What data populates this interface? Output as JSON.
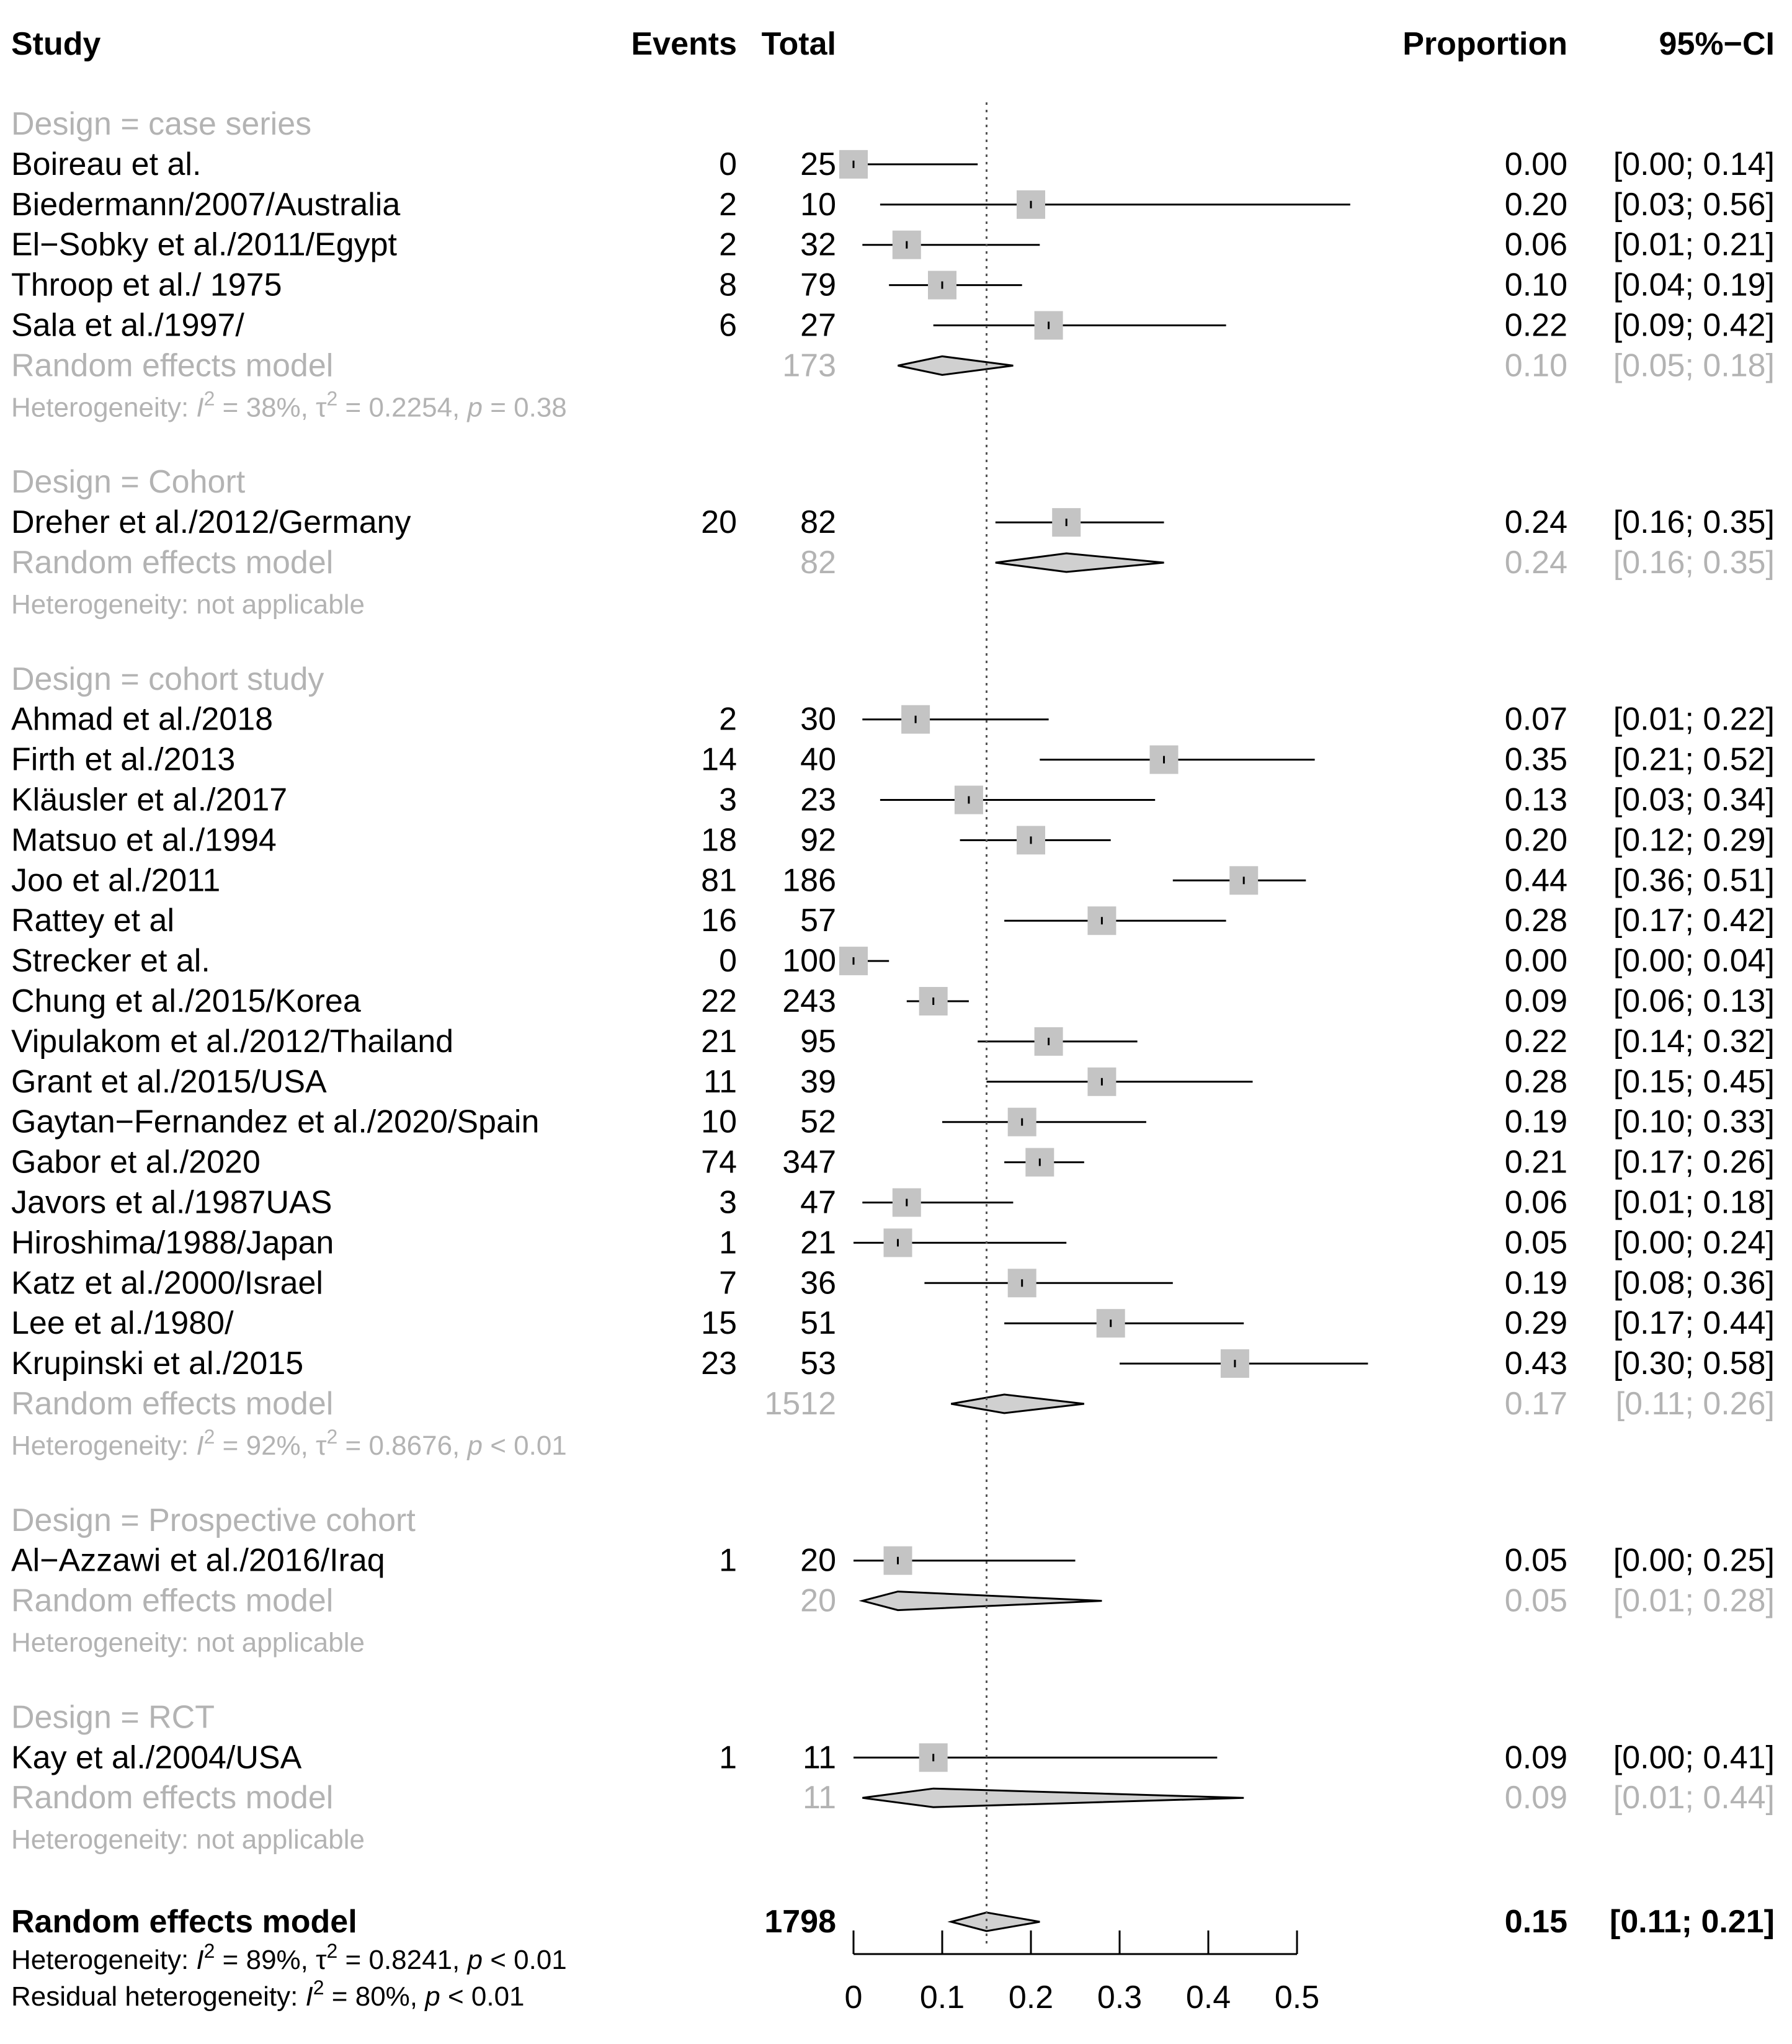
{
  "chart_data": {
    "type": "forest",
    "headers": {
      "study": "Study",
      "events": "Events",
      "total": "Total",
      "proportion": "Proportion",
      "ci": "95%−CI"
    },
    "x_axis": {
      "min": 0,
      "max": 0.5,
      "ticks": [
        "0",
        "0.1",
        "0.2",
        "0.3",
        "0.4",
        "0.5"
      ]
    },
    "reference_line": 0.15,
    "groups": [
      {
        "label": "Design = case series",
        "studies": [
          {
            "name": "Boireau et al.",
            "events": "0",
            "total": "25",
            "prop": 0.0,
            "lo": 0.0,
            "hi": 0.14,
            "prop_text": "0.00",
            "ci_text": "[0.00; 0.14]"
          },
          {
            "name": "Biedermann/2007/Australia",
            "events": "2",
            "total": "10",
            "prop": 0.2,
            "lo": 0.03,
            "hi": 0.56,
            "prop_text": "0.20",
            "ci_text": "[0.03; 0.56]"
          },
          {
            "name": "El−Sobky et al./2011/Egypt",
            "events": "2",
            "total": "32",
            "prop": 0.06,
            "lo": 0.01,
            "hi": 0.21,
            "prop_text": "0.06",
            "ci_text": "[0.01; 0.21]"
          },
          {
            "name": "Throop et al./ 1975",
            "events": "8",
            "total": "79",
            "prop": 0.1,
            "lo": 0.04,
            "hi": 0.19,
            "prop_text": "0.10",
            "ci_text": "[0.04; 0.19]"
          },
          {
            "name": "Sala et al./1997/",
            "events": "6",
            "total": "27",
            "prop": 0.22,
            "lo": 0.09,
            "hi": 0.42,
            "prop_text": "0.22",
            "ci_text": "[0.09; 0.42]"
          }
        ],
        "summary": {
          "label": "Random effects model",
          "total": "173",
          "prop": 0.1,
          "lo": 0.05,
          "hi": 0.18,
          "prop_text": "0.10",
          "ci_text": "[0.05; 0.18]"
        },
        "heterogeneity": {
          "prefix": "Heterogeneity: ",
          "i2": "38%",
          "tau2": "0.2254",
          "p": "= 0.38",
          "text": ""
        }
      },
      {
        "label": "Design = Cohort",
        "studies": [
          {
            "name": "Dreher et al./2012/Germany",
            "events": "20",
            "total": "82",
            "prop": 0.24,
            "lo": 0.16,
            "hi": 0.35,
            "prop_text": "0.24",
            "ci_text": "[0.16; 0.35]"
          }
        ],
        "summary": {
          "label": "Random effects model",
          "total": "82",
          "prop": 0.24,
          "lo": 0.16,
          "hi": 0.35,
          "prop_text": "0.24",
          "ci_text": "[0.16; 0.35]"
        },
        "heterogeneity": {
          "prefix": "",
          "i2": "",
          "tau2": "",
          "p": "",
          "text": "Heterogeneity: not applicable"
        }
      },
      {
        "label": "Design = cohort study",
        "studies": [
          {
            "name": "Ahmad et al./2018",
            "events": "2",
            "total": "30",
            "prop": 0.07,
            "lo": 0.01,
            "hi": 0.22,
            "prop_text": "0.07",
            "ci_text": "[0.01; 0.22]"
          },
          {
            "name": "Firth et al./2013",
            "events": "14",
            "total": "40",
            "prop": 0.35,
            "lo": 0.21,
            "hi": 0.52,
            "prop_text": "0.35",
            "ci_text": "[0.21; 0.52]"
          },
          {
            "name": "Kläusler et al./2017",
            "events": "3",
            "total": "23",
            "prop": 0.13,
            "lo": 0.03,
            "hi": 0.34,
            "prop_text": "0.13",
            "ci_text": "[0.03; 0.34]"
          },
          {
            "name": "Matsuo et al./1994",
            "events": "18",
            "total": "92",
            "prop": 0.2,
            "lo": 0.12,
            "hi": 0.29,
            "prop_text": "0.20",
            "ci_text": "[0.12; 0.29]"
          },
          {
            "name": "Joo et al./2011",
            "events": "81",
            "total": "186",
            "prop": 0.44,
            "lo": 0.36,
            "hi": 0.51,
            "prop_text": "0.44",
            "ci_text": "[0.36; 0.51]"
          },
          {
            "name": "Rattey et al",
            "events": "16",
            "total": "57",
            "prop": 0.28,
            "lo": 0.17,
            "hi": 0.42,
            "prop_text": "0.28",
            "ci_text": "[0.17; 0.42]"
          },
          {
            "name": "Strecker et al.",
            "events": "0",
            "total": "100",
            "prop": 0.0,
            "lo": 0.0,
            "hi": 0.04,
            "prop_text": "0.00",
            "ci_text": "[0.00; 0.04]"
          },
          {
            "name": "Chung et al./2015/Korea",
            "events": "22",
            "total": "243",
            "prop": 0.09,
            "lo": 0.06,
            "hi": 0.13,
            "prop_text": "0.09",
            "ci_text": "[0.06; 0.13]"
          },
          {
            "name": "Vipulakom et al./2012/Thailand",
            "events": "21",
            "total": "95",
            "prop": 0.22,
            "lo": 0.14,
            "hi": 0.32,
            "prop_text": "0.22",
            "ci_text": "[0.14; 0.32]"
          },
          {
            "name": "Grant et al./2015/USA",
            "events": "11",
            "total": "39",
            "prop": 0.28,
            "lo": 0.15,
            "hi": 0.45,
            "prop_text": "0.28",
            "ci_text": "[0.15; 0.45]"
          },
          {
            "name": "Gaytan−Fernandez et al./2020/Spain",
            "events": "10",
            "total": "52",
            "prop": 0.19,
            "lo": 0.1,
            "hi": 0.33,
            "prop_text": "0.19",
            "ci_text": "[0.10; 0.33]"
          },
          {
            "name": "Gabor et al./2020",
            "events": "74",
            "total": "347",
            "prop": 0.21,
            "lo": 0.17,
            "hi": 0.26,
            "prop_text": "0.21",
            "ci_text": "[0.17; 0.26]"
          },
          {
            "name": "Javors et al./1987UAS",
            "events": "3",
            "total": "47",
            "prop": 0.06,
            "lo": 0.01,
            "hi": 0.18,
            "prop_text": "0.06",
            "ci_text": "[0.01; 0.18]"
          },
          {
            "name": "Hiroshima/1988/Japan",
            "events": "1",
            "total": "21",
            "prop": 0.05,
            "lo": 0.0,
            "hi": 0.24,
            "prop_text": "0.05",
            "ci_text": "[0.00; 0.24]"
          },
          {
            "name": "Katz et al./2000/Israel",
            "events": "7",
            "total": "36",
            "prop": 0.19,
            "lo": 0.08,
            "hi": 0.36,
            "prop_text": "0.19",
            "ci_text": "[0.08; 0.36]"
          },
          {
            "name": "Lee et al./1980/",
            "events": "15",
            "total": "51",
            "prop": 0.29,
            "lo": 0.17,
            "hi": 0.44,
            "prop_text": "0.29",
            "ci_text": "[0.17; 0.44]"
          },
          {
            "name": "Krupinski et al./2015",
            "events": "23",
            "total": "53",
            "prop": 0.43,
            "lo": 0.3,
            "hi": 0.58,
            "prop_text": "0.43",
            "ci_text": "[0.30; 0.58]"
          }
        ],
        "summary": {
          "label": "Random effects model",
          "total": "1512",
          "prop": 0.17,
          "lo": 0.11,
          "hi": 0.26,
          "prop_text": "0.17",
          "ci_text": "[0.11; 0.26]"
        },
        "heterogeneity": {
          "prefix": "Heterogeneity: ",
          "i2": "92%",
          "tau2": "0.8676",
          "p": "< 0.01",
          "text": ""
        }
      },
      {
        "label": "Design = Prospective cohort",
        "studies": [
          {
            "name": "Al−Azzawi et al./2016/Iraq",
            "events": "1",
            "total": "20",
            "prop": 0.05,
            "lo": 0.0,
            "hi": 0.25,
            "prop_text": "0.05",
            "ci_text": "[0.00; 0.25]"
          }
        ],
        "summary": {
          "label": "Random effects model",
          "total": "20",
          "prop": 0.05,
          "lo": 0.01,
          "hi": 0.28,
          "prop_text": "0.05",
          "ci_text": "[0.01; 0.28]"
        },
        "heterogeneity": {
          "prefix": "",
          "i2": "",
          "tau2": "",
          "p": "",
          "text": "Heterogeneity: not applicable"
        }
      },
      {
        "label": "Design = RCT",
        "studies": [
          {
            "name": "Kay et al./2004/USA",
            "events": "1",
            "total": "11",
            "prop": 0.09,
            "lo": 0.0,
            "hi": 0.41,
            "prop_text": "0.09",
            "ci_text": "[0.00; 0.41]"
          }
        ],
        "summary": {
          "label": "Random effects model",
          "total": "11",
          "prop": 0.09,
          "lo": 0.01,
          "hi": 0.44,
          "prop_text": "0.09",
          "ci_text": "[0.01; 0.44]"
        },
        "heterogeneity": {
          "prefix": "",
          "i2": "",
          "tau2": "",
          "p": "",
          "text": "Heterogeneity: not applicable"
        }
      }
    ],
    "overall": {
      "label": "Random effects model",
      "total": "1798",
      "prop": 0.15,
      "lo": 0.11,
      "hi": 0.21,
      "prop_text": "0.15",
      "ci_text": "[0.11; 0.21]",
      "heterogeneity": {
        "prefix": "Heterogeneity: ",
        "i2": "89%",
        "tau2": "0.8241",
        "p": "< 0.01"
      },
      "residual": {
        "prefix": "Residual heterogeneity: ",
        "i2": "80%",
        "p": "< 0.01"
      }
    },
    "colors": {
      "text": "#000000",
      "grey_text": "#b3b3b3",
      "square": "#c4c4c4",
      "diamond_fill": "#d0d0d0",
      "overall_diamond_fill": "#d0d0d0",
      "line": "#000000"
    }
  }
}
